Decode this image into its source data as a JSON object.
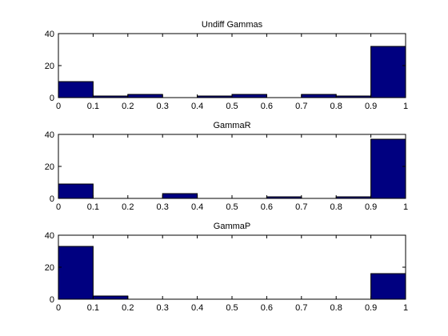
{
  "figure": {
    "background": "#ffffff",
    "bar_color": "#000080",
    "axis_color": "#000000"
  },
  "chart_data": [
    {
      "type": "bar",
      "title": "Undiff Gammas",
      "xlabel": "",
      "ylabel": "",
      "bin_edges": [
        0,
        0.1,
        0.2,
        0.3,
        0.4,
        0.5,
        0.6,
        0.7,
        0.8,
        0.9,
        1.0
      ],
      "values": [
        10,
        1,
        2,
        0,
        1,
        2,
        0,
        2,
        1,
        32
      ],
      "xlim": [
        0,
        1
      ],
      "ylim": [
        0,
        40
      ],
      "xticks": [
        "0",
        "0.1",
        "0.2",
        "0.3",
        "0.4",
        "0.5",
        "0.6",
        "0.7",
        "0.8",
        "0.9",
        "1"
      ],
      "yticks": [
        "0",
        "20",
        "40"
      ],
      "grid": false
    },
    {
      "type": "bar",
      "title": "GammaR",
      "xlabel": "",
      "ylabel": "",
      "bin_edges": [
        0,
        0.1,
        0.2,
        0.3,
        0.4,
        0.5,
        0.6,
        0.7,
        0.8,
        0.9,
        1.0
      ],
      "values": [
        9,
        0,
        0,
        3,
        0,
        0,
        1,
        0,
        1,
        37
      ],
      "xlim": [
        0,
        1
      ],
      "ylim": [
        0,
        40
      ],
      "xticks": [
        "0",
        "0.1",
        "0.2",
        "0.3",
        "0.4",
        "0.5",
        "0.6",
        "0.7",
        "0.8",
        "0.9",
        "1"
      ],
      "yticks": [
        "0",
        "20",
        "40"
      ],
      "grid": false
    },
    {
      "type": "bar",
      "title": "GammaP",
      "xlabel": "",
      "ylabel": "",
      "bin_edges": [
        0,
        0.1,
        0.2,
        0.3,
        0.4,
        0.5,
        0.6,
        0.7,
        0.8,
        0.9,
        1.0
      ],
      "values": [
        33,
        2,
        0,
        0,
        0,
        0,
        0,
        0,
        0,
        16
      ],
      "xlim": [
        0,
        1
      ],
      "ylim": [
        0,
        40
      ],
      "xticks": [
        "0",
        "0.1",
        "0.2",
        "0.3",
        "0.4",
        "0.5",
        "0.6",
        "0.7",
        "0.8",
        "0.9",
        "1"
      ],
      "yticks": [
        "0",
        "20",
        "40"
      ],
      "grid": false
    }
  ]
}
